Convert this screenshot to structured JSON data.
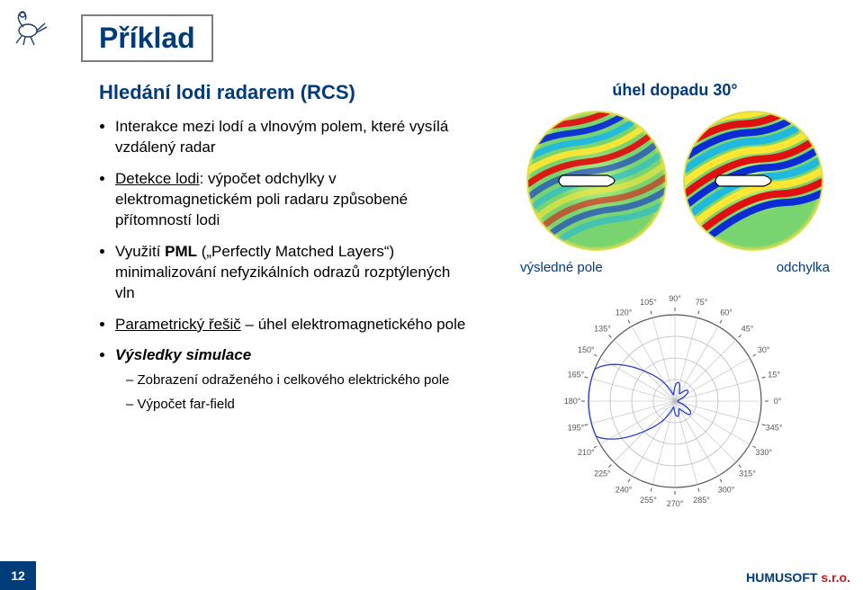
{
  "logo": {
    "stroke": "#1a3a6b"
  },
  "title": "Příklad",
  "subtitle": "Hledání lodi radarem (RCS)",
  "bullets": [
    {
      "text": "Interakce mezi lodí a vlnovým polem, které vysílá vzdálený radar"
    },
    {
      "lead_u": "Detekce lodi",
      "text": ": výpočet odchylky v elektromagnetickém poli radaru způsobené přítomností lodi"
    },
    {
      "text_pre": "Využití ",
      "b": "PML",
      "text_post": " („Perfectly Matched Layers“) minimalizování nefyzikálních odrazů rozptýlených vln"
    },
    {
      "u": "Parametrický řešič",
      "text": " – úhel elektromagnetického pole"
    },
    {
      "bi": "Výsledky simulace",
      "sub": [
        "Zobrazení odraženého i celkového elektrického pole",
        "Výpočet far-field"
      ]
    }
  ],
  "right": {
    "angle_title": "úhel dopadu 30°",
    "left_label": "výsledné pole",
    "right_label": "odchylka"
  },
  "fieldmap": {
    "bg": "#78d46e",
    "ring": "#f2e24a",
    "boat_fill": "#ffffff",
    "boat_stroke": "#000000",
    "wave_colors": [
      "#0b2bd6",
      "#1fb9e0",
      "#ffe633",
      "#e01010"
    ]
  },
  "polar": {
    "axis_color": "#555555",
    "grid_color": "#bbbbbb",
    "line_color": "#2a3fcc",
    "tick_font_size": 9,
    "angles": [
      "120°",
      "105°",
      "90°",
      "75°",
      "60°",
      "45°",
      "30°",
      "15°",
      "0°",
      "345°",
      "330°",
      "315°",
      "300°",
      "285°",
      "270°",
      "255°",
      "240°",
      "225°",
      "210°",
      "195°",
      "180°",
      "165°",
      "150°",
      "135°"
    ]
  },
  "footer": {
    "page": "12",
    "brand1": "HUMUSOFT ",
    "brand2": "s.r.o."
  }
}
